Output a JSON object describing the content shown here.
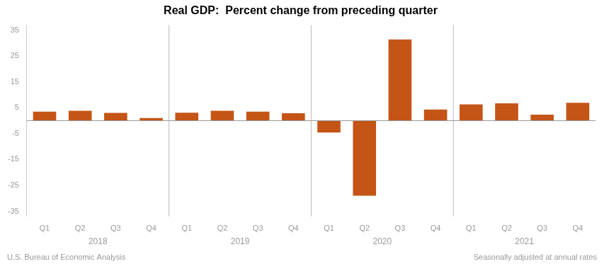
{
  "chart_data": {
    "type": "bar",
    "title": "Real GDP:  Percent change from preceding quarter",
    "categories": [
      "Q1",
      "Q2",
      "Q3",
      "Q4",
      "Q1",
      "Q2",
      "Q3",
      "Q4",
      "Q1",
      "Q2",
      "Q3",
      "Q4",
      "Q1",
      "Q2",
      "Q3",
      "Q4"
    ],
    "values": [
      3.5,
      3.8,
      3.0,
      1.0,
      3.1,
      3.8,
      3.5,
      2.9,
      -4.6,
      -29.0,
      31.4,
      4.3,
      6.3,
      6.7,
      2.3,
      6.9
    ],
    "color": "#C45516",
    "ylim": [
      -37,
      37
    ],
    "yticks": [
      -35,
      -25,
      -15,
      -5,
      5,
      15,
      25,
      35
    ],
    "grid": false,
    "group_labels": [
      "2018",
      "2019",
      "2020",
      "2021"
    ],
    "footnotes": [
      "U.S. Bureau of Economic Analysis",
      "Seasonally adjusted at annual rates"
    ]
  }
}
